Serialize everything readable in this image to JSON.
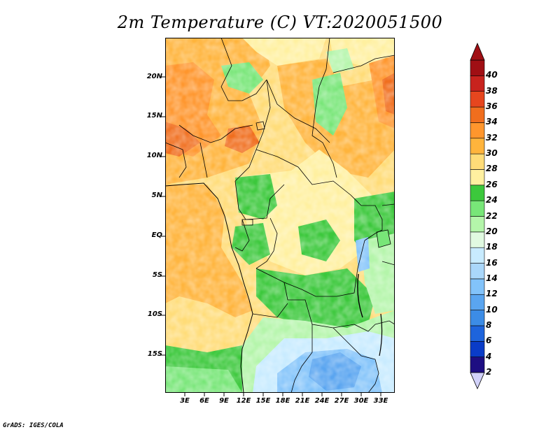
{
  "title": "2m Temperature (C) VT:2020051500",
  "credit": "GrADS: IGES/COLA",
  "y_axis_labels": [
    "20N",
    "15N",
    "10N",
    "5N",
    "EQ",
    "5S",
    "10S",
    "15S"
  ],
  "x_axis_labels": [
    "3E",
    "6E",
    "9E",
    "12E",
    "15E",
    "18E",
    "21E",
    "24E",
    "27E",
    "30E",
    "33E"
  ],
  "colorbar": {
    "levels": [
      "2",
      "4",
      "6",
      "8",
      "10",
      "12",
      "14",
      "16",
      "18",
      "20",
      "22",
      "24",
      "26",
      "28",
      "30",
      "32",
      "34",
      "36",
      "38",
      "40"
    ],
    "colors": [
      "#1e0e82",
      "#0a3cc8",
      "#1e64dc",
      "#3c8ce6",
      "#5aa5f0",
      "#82c3fa",
      "#aad7fa",
      "#c8ebff",
      "#e1fae1",
      "#b4f5aa",
      "#78e678",
      "#3cc83c",
      "#fff0a0",
      "#ffdc78",
      "#ffb43c",
      "#ff962d",
      "#f06e1e",
      "#e6461e",
      "#c8231e",
      "#a00f14"
    ],
    "under_color": "#d2d2fa",
    "over_color": "#a00f14"
  }
}
